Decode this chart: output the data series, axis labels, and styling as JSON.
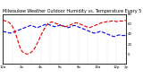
{
  "title": "Milwaukee Weather Outdoor Humidity vs. Temperature Every 5 Minutes",
  "bg_color": "#ffffff",
  "grid_color": "#aaaaaa",
  "line1_color": "#0000dd",
  "line2_color": "#dd0000",
  "line_width": 0.8,
  "ylim": [
    0,
    100
  ],
  "y2lim": [
    -20,
    80
  ],
  "y2ticks": [
    0,
    20,
    40,
    60,
    80
  ],
  "humidity_data": [
    65,
    65,
    64,
    63,
    63,
    62,
    62,
    62,
    63,
    64,
    65,
    66,
    67,
    68,
    69,
    70,
    71,
    72,
    73,
    74,
    75,
    76,
    77,
    77,
    76,
    75,
    74,
    73,
    73,
    74,
    75,
    76,
    77,
    78,
    79,
    80,
    80,
    79,
    78,
    77,
    76,
    75,
    75,
    75,
    76,
    77,
    78,
    78,
    77,
    76,
    75,
    74,
    73,
    73,
    74,
    75,
    76,
    77,
    77,
    76,
    75,
    74,
    73,
    72,
    71,
    70,
    69,
    68,
    67,
    66,
    65,
    64,
    63,
    62,
    62,
    62,
    63,
    64,
    65,
    65,
    64,
    63,
    62,
    61,
    60,
    59,
    58,
    57,
    56,
    55,
    55,
    56,
    57,
    58,
    58,
    57,
    57,
    57,
    57,
    57
  ],
  "temp_data": [
    68,
    67,
    66,
    65,
    64,
    63,
    61,
    58,
    54,
    49,
    42,
    35,
    27,
    19,
    12,
    7,
    4,
    2,
    1,
    0,
    0,
    1,
    2,
    4,
    6,
    9,
    13,
    18,
    23,
    28,
    34,
    39,
    44,
    49,
    53,
    57,
    60,
    62,
    63,
    64,
    64,
    63,
    62,
    61,
    60,
    59,
    58,
    57,
    56,
    55,
    55,
    55,
    56,
    57,
    58,
    59,
    60,
    61,
    62,
    62,
    62,
    61,
    60,
    59,
    58,
    57,
    56,
    55,
    54,
    53,
    53,
    54,
    55,
    56,
    57,
    58,
    59,
    60,
    61,
    62,
    63,
    63,
    64,
    64,
    65,
    65,
    65,
    66,
    66,
    66,
    66,
    65,
    65,
    65,
    66,
    66,
    66,
    66,
    67,
    67
  ],
  "n_xticks": 14,
  "xtick_labels": [
    "12a",
    "",
    "2a",
    "",
    "4a",
    "",
    "6a",
    "",
    "8a",
    "",
    "10a",
    "",
    "12p",
    "2p"
  ],
  "title_fontsize": 3.5,
  "tick_fontsize": 2.8
}
